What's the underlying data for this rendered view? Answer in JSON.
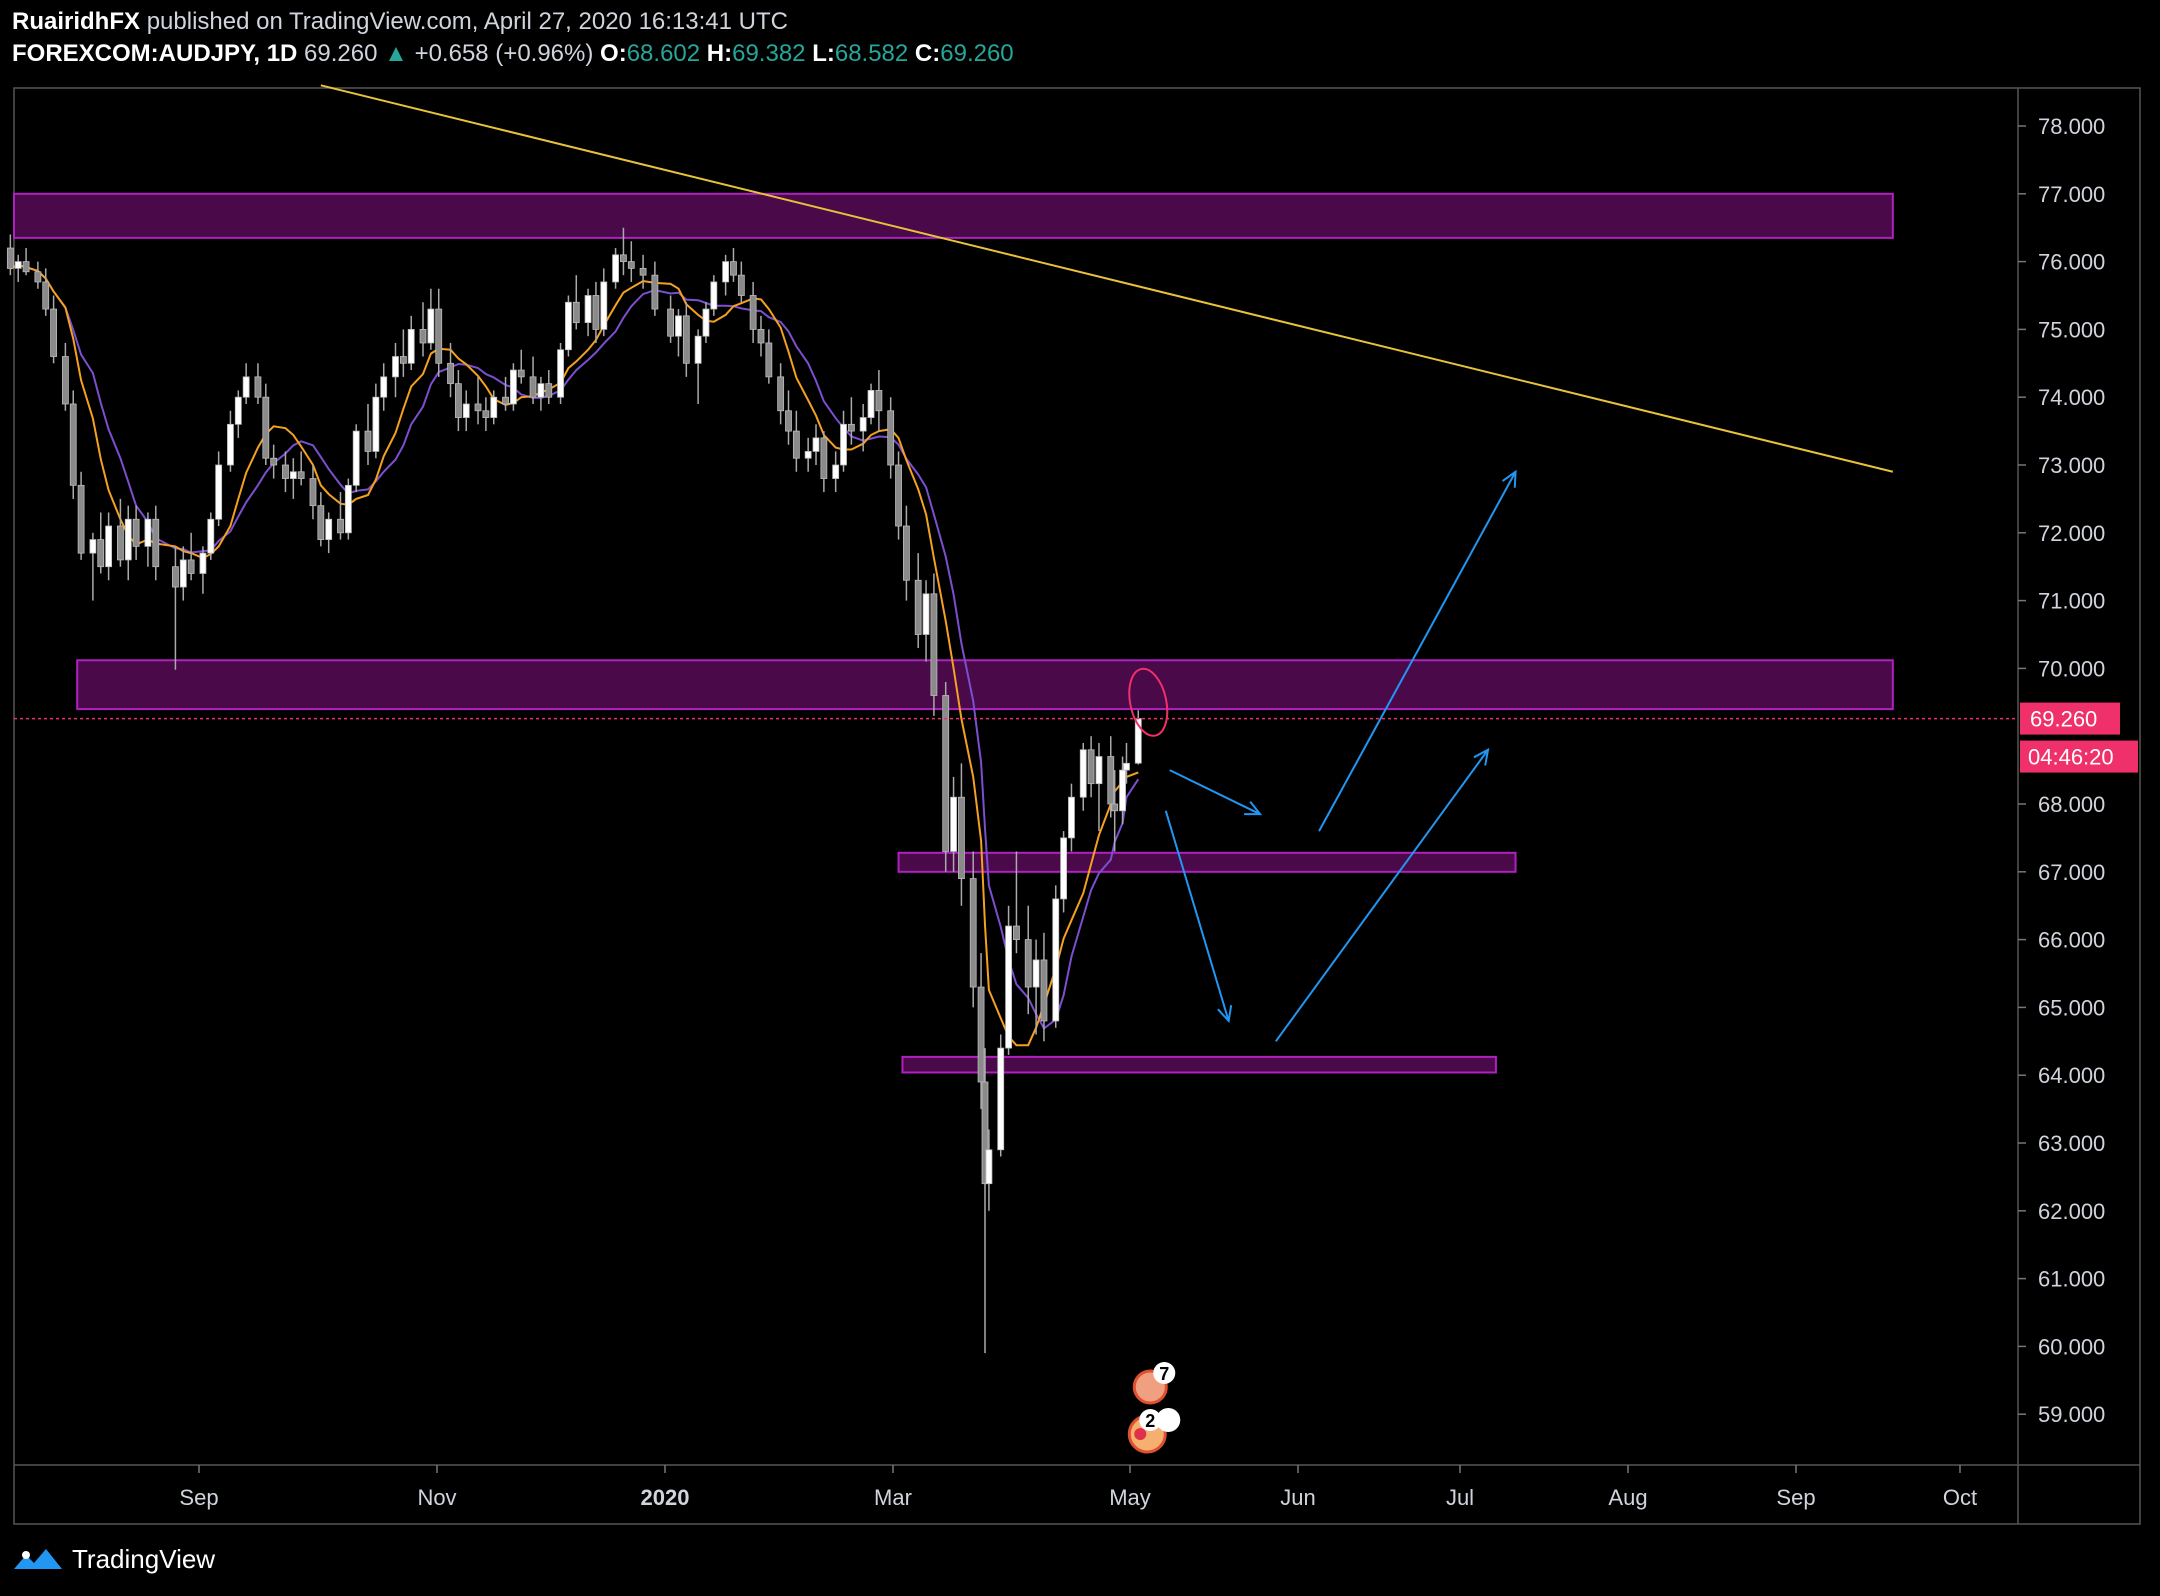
{
  "header": {
    "publisher": "RuairidhFX",
    "published_text": "published on TradingView.com, April 27, 2020 16:13:41 UTC",
    "symbol": "FOREXCOM:AUDJPY, 1D",
    "last": "69.260",
    "change": "+0.658 (+0.96%)",
    "open_label": "O:",
    "open": "68.602",
    "high_label": "H:",
    "high": "69.382",
    "low_label": "L:",
    "low": "68.582",
    "close_label": "C:",
    "close": "69.260"
  },
  "footer": {
    "brand": "TradingView"
  },
  "colors": {
    "background": "#000000",
    "zone_fill": "#4a0a4a",
    "zone_border": "#b020c0",
    "trendline": "#e8c23a",
    "ma_fast": "#f4a020",
    "ma_slow": "#7a4fd0",
    "arrows": "#2196f3",
    "price_label": "#f0306a",
    "candles": "#d9d9d9"
  },
  "chart_data": {
    "type": "candlestick",
    "ylim": [
      58.3,
      79.1
    ],
    "y_ticks": [
      "78.000",
      "77.000",
      "76.000",
      "75.000",
      "74.000",
      "73.000",
      "72.000",
      "71.000",
      "70.000",
      "68.000",
      "67.000",
      "66.000",
      "65.000",
      "64.000",
      "63.000",
      "62.000",
      "61.000",
      "60.000",
      "59.000"
    ],
    "x_ticks": [
      "Sep",
      "Nov",
      "2020",
      "Mar",
      "May",
      "Jun",
      "Jul",
      "Aug",
      "Sep",
      "Oct"
    ],
    "x_ticks_bold": [
      "2020"
    ],
    "last_price_label": "69.260",
    "countdown_label": "04:46:20",
    "last_price": 69.26,
    "zones": [
      {
        "from": "2019-07-15",
        "to": "2020-11-05",
        "low": 76.35,
        "high": 77.0
      },
      {
        "from": "2019-08-01",
        "to": "2020-11-05",
        "low": 69.4,
        "high": 70.12
      },
      {
        "from": "2020-02-26",
        "to": "2020-08-01",
        "low": 67.0,
        "high": 67.28
      },
      {
        "from": "2020-02-27",
        "to": "2020-07-27",
        "low": 64.04,
        "high": 64.27
      }
    ],
    "trendline": {
      "x1": "2019-10-02",
      "y1": 78.6,
      "x2": "2020-11-05",
      "y2": 72.9
    },
    "arrows": [
      {
        "x1": "2020-05-05",
        "y1": 68.5,
        "x2": "2020-05-28",
        "y2": 67.85
      },
      {
        "x1": "2020-05-04",
        "y1": 67.9,
        "x2": "2020-05-20",
        "y2": 64.8
      },
      {
        "x1": "2020-06-12",
        "y1": 67.6,
        "x2": "2020-08-01",
        "y2": 72.9
      },
      {
        "x1": "2020-06-01",
        "y1": 64.5,
        "x2": "2020-07-25",
        "y2": 68.8
      }
    ],
    "event_badges": [
      "7",
      "2"
    ],
    "candles": [
      [
        "2019-07-15",
        76.2,
        76.4,
        75.8,
        75.9
      ],
      [
        "2019-07-17",
        75.9,
        76.1,
        75.7,
        76.0
      ],
      [
        "2019-07-19",
        76.0,
        76.2,
        75.8,
        75.85
      ],
      [
        "2019-07-22",
        75.85,
        76.0,
        75.6,
        75.7
      ],
      [
        "2019-07-24",
        75.7,
        75.9,
        75.2,
        75.3
      ],
      [
        "2019-07-26",
        75.3,
        75.5,
        74.5,
        74.6
      ],
      [
        "2019-07-29",
        74.6,
        74.8,
        73.8,
        73.9
      ],
      [
        "2019-07-31",
        73.9,
        74.1,
        72.5,
        72.7
      ],
      [
        "2019-08-02",
        72.7,
        72.9,
        71.6,
        71.7
      ],
      [
        "2019-08-05",
        71.7,
        72.0,
        71.0,
        71.9
      ],
      [
        "2019-08-07",
        71.9,
        72.3,
        71.4,
        71.5
      ],
      [
        "2019-08-09",
        71.5,
        72.3,
        71.3,
        72.1
      ],
      [
        "2019-08-12",
        72.1,
        72.5,
        71.5,
        71.6
      ],
      [
        "2019-08-14",
        71.6,
        72.4,
        71.3,
        72.2
      ],
      [
        "2019-08-16",
        72.2,
        72.4,
        71.6,
        71.8
      ],
      [
        "2019-08-19",
        71.8,
        72.3,
        71.5,
        72.2
      ],
      [
        "2019-08-21",
        72.2,
        72.4,
        71.3,
        71.5
      ],
      [
        "2019-08-26",
        71.5,
        71.8,
        69.98,
        71.2
      ],
      [
        "2019-08-28",
        71.2,
        71.8,
        71.0,
        71.6
      ],
      [
        "2019-08-30",
        71.6,
        72.0,
        71.3,
        71.4
      ],
      [
        "2019-09-02",
        71.4,
        71.8,
        71.1,
        71.7
      ],
      [
        "2019-09-04",
        71.7,
        72.3,
        71.6,
        72.2
      ],
      [
        "2019-09-06",
        72.2,
        73.2,
        72.1,
        73.0
      ],
      [
        "2019-09-09",
        73.0,
        73.8,
        72.9,
        73.6
      ],
      [
        "2019-09-11",
        73.6,
        74.1,
        73.4,
        74.0
      ],
      [
        "2019-09-13",
        74.0,
        74.5,
        73.9,
        74.3
      ],
      [
        "2019-09-16",
        74.3,
        74.5,
        73.9,
        74.0
      ],
      [
        "2019-09-18",
        74.0,
        74.2,
        73.0,
        73.1
      ],
      [
        "2019-09-20",
        73.1,
        73.3,
        72.8,
        73.0
      ],
      [
        "2019-09-23",
        73.0,
        73.2,
        72.6,
        72.8
      ],
      [
        "2019-09-25",
        72.8,
        73.1,
        72.5,
        72.9
      ],
      [
        "2019-09-27",
        72.9,
        73.2,
        72.7,
        72.8
      ],
      [
        "2019-09-30",
        72.8,
        73.0,
        72.2,
        72.4
      ],
      [
        "2019-10-02",
        72.4,
        72.6,
        71.8,
        71.9
      ],
      [
        "2019-10-04",
        71.9,
        72.3,
        71.7,
        72.2
      ],
      [
        "2019-10-07",
        72.2,
        72.6,
        71.9,
        72.0
      ],
      [
        "2019-10-09",
        72.0,
        72.8,
        71.9,
        72.7
      ],
      [
        "2019-10-11",
        72.7,
        73.6,
        72.6,
        73.5
      ],
      [
        "2019-10-14",
        73.5,
        73.9,
        73.0,
        73.2
      ],
      [
        "2019-10-16",
        73.2,
        74.2,
        73.1,
        74.0
      ],
      [
        "2019-10-18",
        74.0,
        74.5,
        73.8,
        74.3
      ],
      [
        "2019-10-21",
        74.3,
        74.8,
        74.0,
        74.6
      ],
      [
        "2019-10-23",
        74.6,
        75.0,
        74.3,
        74.5
      ],
      [
        "2019-10-25",
        74.5,
        75.2,
        74.4,
        75.0
      ],
      [
        "2019-10-28",
        75.0,
        75.4,
        74.6,
        74.8
      ],
      [
        "2019-10-30",
        74.8,
        75.6,
        74.7,
        75.3
      ],
      [
        "2019-11-01",
        75.3,
        75.6,
        74.3,
        74.5
      ],
      [
        "2019-11-04",
        74.5,
        74.8,
        74.0,
        74.2
      ],
      [
        "2019-11-06",
        74.2,
        74.4,
        73.5,
        73.7
      ],
      [
        "2019-11-08",
        73.7,
        74.1,
        73.5,
        73.9
      ],
      [
        "2019-11-11",
        73.9,
        74.3,
        73.6,
        73.8
      ],
      [
        "2019-11-13",
        73.8,
        74.0,
        73.5,
        73.7
      ],
      [
        "2019-11-15",
        73.7,
        74.1,
        73.6,
        74.0
      ],
      [
        "2019-11-18",
        74.0,
        74.3,
        73.8,
        73.9
      ],
      [
        "2019-11-20",
        73.9,
        74.5,
        73.8,
        74.4
      ],
      [
        "2019-11-22",
        74.4,
        74.7,
        74.2,
        74.3
      ],
      [
        "2019-11-25",
        74.3,
        74.6,
        73.9,
        74.0
      ],
      [
        "2019-11-27",
        74.0,
        74.3,
        73.8,
        74.2
      ],
      [
        "2019-11-29",
        74.2,
        74.4,
        73.9,
        74.0
      ],
      [
        "2019-12-02",
        74.0,
        74.8,
        73.9,
        74.7
      ],
      [
        "2019-12-04",
        74.7,
        75.5,
        74.6,
        75.4
      ],
      [
        "2019-12-06",
        75.4,
        75.8,
        75.0,
        75.1
      ],
      [
        "2019-12-09",
        75.1,
        75.6,
        74.9,
        75.5
      ],
      [
        "2019-12-11",
        75.5,
        75.7,
        74.8,
        75.0
      ],
      [
        "2019-12-13",
        75.0,
        75.9,
        74.9,
        75.7
      ],
      [
        "2019-12-16",
        75.7,
        76.2,
        75.6,
        76.1
      ],
      [
        "2019-12-18",
        76.1,
        76.5,
        75.8,
        76.0
      ],
      [
        "2019-12-20",
        76.0,
        76.3,
        75.7,
        75.9
      ],
      [
        "2019-12-23",
        75.9,
        76.1,
        75.6,
        75.8
      ],
      [
        "2019-12-26",
        75.8,
        76.0,
        75.2,
        75.3
      ],
      [
        "2019-12-30",
        75.3,
        75.5,
        74.8,
        74.9
      ],
      [
        "2020-01-01",
        74.9,
        75.3,
        74.6,
        75.2
      ],
      [
        "2020-01-03",
        75.2,
        75.4,
        74.3,
        74.5
      ],
      [
        "2020-01-06",
        74.5,
        75.0,
        73.9,
        74.9
      ],
      [
        "2020-01-08",
        74.9,
        75.4,
        74.8,
        75.3
      ],
      [
        "2020-01-10",
        75.3,
        75.8,
        75.2,
        75.7
      ],
      [
        "2020-01-13",
        75.7,
        76.1,
        75.5,
        76.0
      ],
      [
        "2020-01-15",
        76.0,
        76.2,
        75.7,
        75.8
      ],
      [
        "2020-01-17",
        75.8,
        76.0,
        75.4,
        75.5
      ],
      [
        "2020-01-20",
        75.5,
        75.7,
        74.8,
        75.0
      ],
      [
        "2020-01-22",
        75.0,
        75.2,
        74.6,
        74.8
      ],
      [
        "2020-01-24",
        74.8,
        75.0,
        74.2,
        74.3
      ],
      [
        "2020-01-27",
        74.3,
        74.5,
        73.6,
        73.8
      ],
      [
        "2020-01-29",
        73.8,
        74.1,
        73.3,
        73.5
      ],
      [
        "2020-01-31",
        73.5,
        73.8,
        72.9,
        73.1
      ],
      [
        "2020-02-03",
        73.1,
        73.4,
        72.9,
        73.2
      ],
      [
        "2020-02-05",
        73.2,
        73.6,
        73.0,
        73.4
      ],
      [
        "2020-02-07",
        73.4,
        73.5,
        72.6,
        72.8
      ],
      [
        "2020-02-10",
        72.8,
        73.2,
        72.6,
        73.0
      ],
      [
        "2020-02-12",
        73.0,
        73.8,
        72.9,
        73.6
      ],
      [
        "2020-02-14",
        73.6,
        74.0,
        73.3,
        73.5
      ],
      [
        "2020-02-17",
        73.5,
        73.9,
        73.2,
        73.7
      ],
      [
        "2020-02-19",
        73.7,
        74.2,
        73.6,
        74.1
      ],
      [
        "2020-02-21",
        74.1,
        74.4,
        73.5,
        73.8
      ],
      [
        "2020-02-24",
        73.8,
        74.0,
        72.8,
        73.0
      ],
      [
        "2020-02-26",
        73.0,
        73.2,
        71.9,
        72.1
      ],
      [
        "2020-02-28",
        72.1,
        72.4,
        71.0,
        71.3
      ],
      [
        "2020-03-02",
        71.3,
        71.7,
        70.3,
        70.5
      ],
      [
        "2020-03-04",
        70.5,
        71.3,
        70.1,
        71.1
      ],
      [
        "2020-03-06",
        71.1,
        71.4,
        69.3,
        69.6
      ],
      [
        "2020-03-09",
        69.6,
        69.8,
        67.0,
        67.3
      ],
      [
        "2020-03-11",
        67.3,
        68.4,
        67.0,
        68.1
      ],
      [
        "2020-03-13",
        68.1,
        68.6,
        66.5,
        66.9
      ],
      [
        "2020-03-16",
        66.9,
        67.3,
        65.0,
        65.3
      ],
      [
        "2020-03-18",
        65.3,
        65.8,
        63.5,
        63.9
      ],
      [
        "2020-03-19",
        63.9,
        64.4,
        59.9,
        62.4
      ],
      [
        "2020-03-20",
        62.4,
        63.2,
        62.0,
        62.9
      ],
      [
        "2020-03-23",
        62.9,
        64.6,
        62.8,
        64.4
      ],
      [
        "2020-03-25",
        64.4,
        66.5,
        64.3,
        66.2
      ],
      [
        "2020-03-27",
        66.2,
        67.3,
        65.8,
        66.0
      ],
      [
        "2020-03-30",
        66.0,
        66.5,
        64.9,
        65.3
      ],
      [
        "2020-04-01",
        65.3,
        66.0,
        64.6,
        65.7
      ],
      [
        "2020-04-03",
        65.7,
        66.1,
        64.5,
        64.8
      ],
      [
        "2020-04-06",
        64.8,
        66.8,
        64.7,
        66.6
      ],
      [
        "2020-04-08",
        66.6,
        67.6,
        66.4,
        67.5
      ],
      [
        "2020-04-10",
        67.5,
        68.3,
        67.3,
        68.1
      ],
      [
        "2020-04-13",
        68.1,
        68.9,
        67.9,
        68.8
      ],
      [
        "2020-04-15",
        68.8,
        69.0,
        68.1,
        68.3
      ],
      [
        "2020-04-17",
        68.3,
        68.9,
        67.6,
        68.7
      ],
      [
        "2020-04-20",
        68.7,
        69.0,
        67.8,
        68.0
      ],
      [
        "2020-04-21",
        68.0,
        68.5,
        67.3,
        67.9
      ],
      [
        "2020-04-23",
        67.9,
        68.7,
        67.7,
        68.5
      ],
      [
        "2020-04-24",
        68.5,
        68.9,
        68.3,
        68.6
      ],
      [
        "2020-04-27",
        68.602,
        69.382,
        68.582,
        69.26
      ]
    ]
  }
}
